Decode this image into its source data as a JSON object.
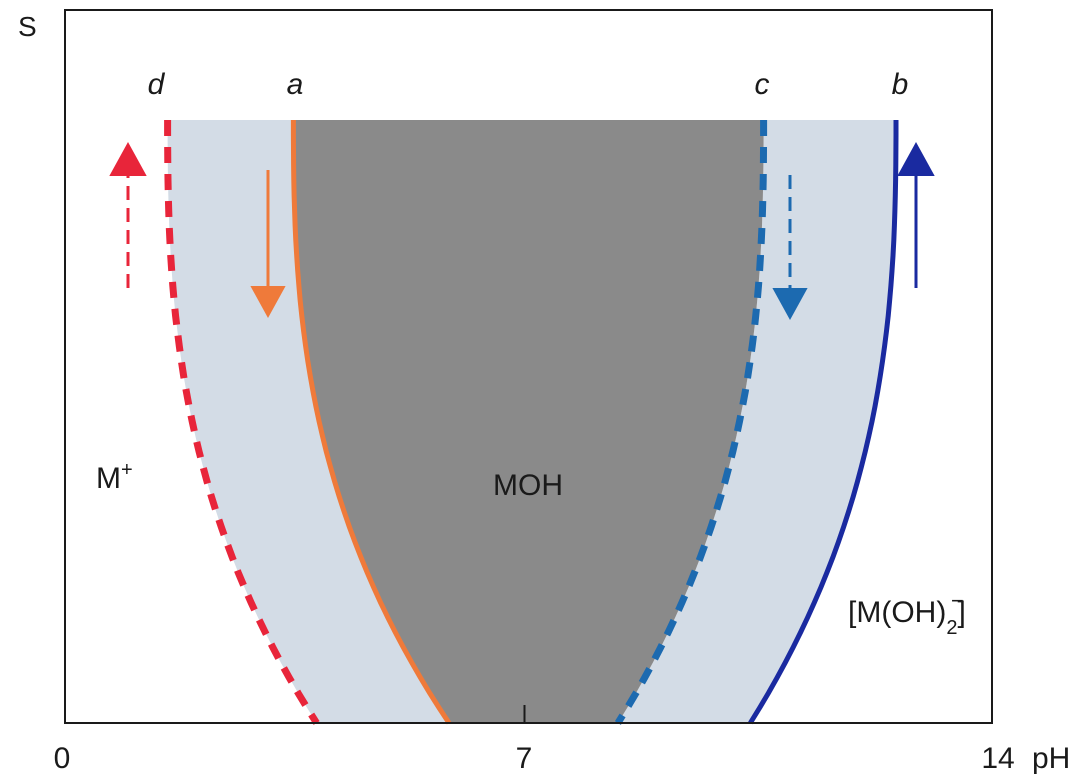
{
  "chart_data": {
    "type": "area",
    "title": "",
    "xlabel": "pH",
    "ylabel": "S",
    "xlim": [
      0,
      14
    ],
    "x_ticks": [
      "0",
      "7",
      "14"
    ],
    "grid": false,
    "legend": "none",
    "regions": [
      {
        "name": "M+",
        "label": "M",
        "superscript": "+",
        "color": "#d3dce6"
      },
      {
        "name": "MOH",
        "label": "MOH",
        "color": "#8a8a8a"
      },
      {
        "name": "[M(OH)2-]",
        "label": "[M(OH)",
        "subscript": "2",
        "superscript": "−",
        "close": "]",
        "color": "#d3dce6"
      }
    ],
    "curves": [
      {
        "name": "d",
        "side": "left",
        "style": "dashed",
        "color": "#e8253a",
        "x_top": 1.55,
        "x_bottom": 3.8,
        "arrow": "up"
      },
      {
        "name": "a",
        "side": "left",
        "style": "solid",
        "color": "#ef7a3a",
        "x_top": 3.45,
        "x_bottom": 5.8,
        "arrow": "down"
      },
      {
        "name": "c",
        "side": "right",
        "style": "dashed",
        "color": "#1c6ab0",
        "x_top": 10.55,
        "x_bottom": 8.35,
        "arrow": "down"
      },
      {
        "name": "b",
        "side": "right",
        "style": "solid",
        "color": "#1a2aa0",
        "x_top": 12.55,
        "x_bottom": 10.35,
        "arrow": "up"
      }
    ]
  }
}
